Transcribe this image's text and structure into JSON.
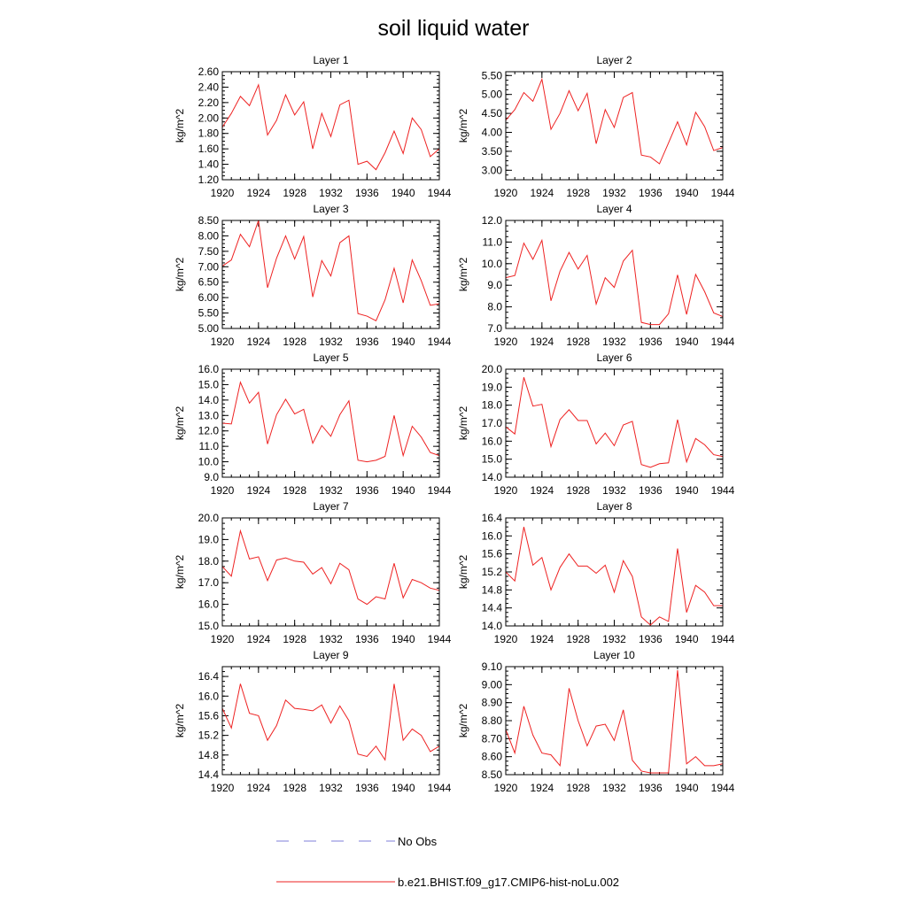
{
  "title": "soil liquid water",
  "legend": {
    "obs_label": "No Obs",
    "obs_color": "#7f7fd9",
    "model_label": "b.e21.BHIST.f09_g17.CMIP6-hist-noLu.002",
    "model_color": "#ee2222"
  },
  "chart_data": [
    {
      "type": "line",
      "title": "Layer 1",
      "ylabel": "kg/m^2",
      "xlim": [
        1920,
        1944
      ],
      "ylim": [
        1.2,
        2.6
      ],
      "xticks": [
        1920,
        1924,
        1928,
        1932,
        1936,
        1940,
        1944
      ],
      "xtick_labels": [
        "1920",
        "1924",
        "1928",
        "1932",
        "1936",
        "1940",
        "1944"
      ],
      "yticks": [
        1.2,
        1.4,
        1.6,
        1.8,
        2.0,
        2.2,
        2.4,
        2.6
      ],
      "ytick_labels": [
        "1.20",
        "1.40",
        "1.60",
        "1.80",
        "2.00",
        "2.20",
        "2.40",
        "2.60"
      ],
      "x": [
        1920,
        1921,
        1922,
        1923,
        1924,
        1925,
        1926,
        1927,
        1928,
        1929,
        1930,
        1931,
        1932,
        1933,
        1934,
        1935,
        1936,
        1937,
        1938,
        1939,
        1940,
        1941,
        1942,
        1943,
        1944
      ],
      "series": [
        {
          "name": "b.e21.BHIST.f09_g17.CMIP6-hist-noLu.002",
          "values": [
            1.88,
            2.06,
            2.28,
            2.16,
            2.43,
            1.78,
            1.97,
            2.3,
            2.04,
            2.21,
            1.6,
            2.06,
            1.76,
            2.17,
            2.23,
            1.4,
            1.44,
            1.33,
            1.55,
            1.83,
            1.54,
            2.0,
            1.85,
            1.5,
            1.6
          ]
        }
      ]
    },
    {
      "type": "line",
      "title": "Layer 2",
      "ylabel": "kg/m^2",
      "xlim": [
        1920,
        1944
      ],
      "ylim": [
        2.75,
        5.6
      ],
      "xticks": [
        1920,
        1924,
        1928,
        1932,
        1936,
        1940,
        1944
      ],
      "xtick_labels": [
        "1920",
        "1924",
        "1928",
        "1932",
        "1936",
        "1940",
        "1944"
      ],
      "yticks": [
        3.0,
        3.5,
        4.0,
        4.5,
        5.0,
        5.5
      ],
      "ytick_labels": [
        "3.00",
        "3.50",
        "4.00",
        "4.50",
        "5.00",
        "5.50"
      ],
      "x": [
        1920,
        1921,
        1922,
        1923,
        1924,
        1925,
        1926,
        1927,
        1928,
        1929,
        1930,
        1931,
        1932,
        1933,
        1934,
        1935,
        1936,
        1937,
        1938,
        1939,
        1940,
        1941,
        1942,
        1943,
        1944
      ],
      "series": [
        {
          "name": "b.e21.BHIST.f09_g17.CMIP6-hist-noLu.002",
          "values": [
            4.32,
            4.6,
            5.05,
            4.82,
            5.4,
            4.08,
            4.5,
            5.1,
            4.57,
            5.03,
            3.7,
            4.6,
            4.13,
            4.92,
            5.05,
            3.4,
            3.35,
            3.17,
            3.72,
            4.28,
            3.67,
            4.53,
            4.15,
            3.52,
            3.6
          ]
        }
      ]
    },
    {
      "type": "line",
      "title": "Layer 3",
      "ylabel": "kg/m^2",
      "xlim": [
        1920,
        1944
      ],
      "ylim": [
        5.0,
        8.5
      ],
      "xticks": [
        1920,
        1924,
        1928,
        1932,
        1936,
        1940,
        1944
      ],
      "xtick_labels": [
        "1920",
        "1924",
        "1928",
        "1932",
        "1936",
        "1940",
        "1944"
      ],
      "yticks": [
        5.0,
        5.5,
        6.0,
        6.5,
        7.0,
        7.5,
        8.0,
        8.5
      ],
      "ytick_labels": [
        "5.00",
        "5.50",
        "6.00",
        "6.50",
        "7.00",
        "7.50",
        "8.00",
        "8.50"
      ],
      "x": [
        1920,
        1921,
        1922,
        1923,
        1924,
        1925,
        1926,
        1927,
        1928,
        1929,
        1930,
        1931,
        1932,
        1933,
        1934,
        1935,
        1936,
        1937,
        1938,
        1939,
        1940,
        1941,
        1942,
        1943,
        1944
      ],
      "series": [
        {
          "name": "b.e21.BHIST.f09_g17.CMIP6-hist-noLu.002",
          "values": [
            7.02,
            7.22,
            8.05,
            7.65,
            8.5,
            6.32,
            7.28,
            8.0,
            7.25,
            7.98,
            6.02,
            7.2,
            6.7,
            7.78,
            8.0,
            5.48,
            5.4,
            5.25,
            5.93,
            6.95,
            5.83,
            7.22,
            6.55,
            5.75,
            5.8
          ]
        }
      ]
    },
    {
      "type": "line",
      "title": "Layer 4",
      "ylabel": "kg/m^2",
      "xlim": [
        1920,
        1944
      ],
      "ylim": [
        7.0,
        12.0
      ],
      "xticks": [
        1920,
        1924,
        1928,
        1932,
        1936,
        1940,
        1944
      ],
      "xtick_labels": [
        "1920",
        "1924",
        "1928",
        "1932",
        "1936",
        "1940",
        "1944"
      ],
      "yticks": [
        7.0,
        8.0,
        9.0,
        10.0,
        11.0,
        12.0
      ],
      "ytick_labels": [
        "7.0",
        "8.0",
        "9.0",
        "10.0",
        "11.0",
        "12.0"
      ],
      "x": [
        1920,
        1921,
        1922,
        1923,
        1924,
        1925,
        1926,
        1927,
        1928,
        1929,
        1930,
        1931,
        1932,
        1933,
        1934,
        1935,
        1936,
        1937,
        1938,
        1939,
        1940,
        1941,
        1942,
        1943,
        1944
      ],
      "series": [
        {
          "name": "b.e21.BHIST.f09_g17.CMIP6-hist-noLu.002",
          "values": [
            9.35,
            9.45,
            10.95,
            10.2,
            11.08,
            8.28,
            9.65,
            10.52,
            9.75,
            10.38,
            8.13,
            9.35,
            8.9,
            10.12,
            10.62,
            7.28,
            7.18,
            7.18,
            7.68,
            9.48,
            7.65,
            9.5,
            8.7,
            7.72,
            7.55
          ]
        }
      ]
    },
    {
      "type": "line",
      "title": "Layer 5",
      "ylabel": "kg/m^2",
      "xlim": [
        1920,
        1944
      ],
      "ylim": [
        9.0,
        16.0
      ],
      "xticks": [
        1920,
        1924,
        1928,
        1932,
        1936,
        1940,
        1944
      ],
      "xtick_labels": [
        "1920",
        "1924",
        "1928",
        "1932",
        "1936",
        "1940",
        "1944"
      ],
      "yticks": [
        9.0,
        10.0,
        11.0,
        12.0,
        13.0,
        14.0,
        15.0,
        16.0
      ],
      "ytick_labels": [
        "9.0",
        "10.0",
        "11.0",
        "12.0",
        "13.0",
        "14.0",
        "15.0",
        "16.0"
      ],
      "x": [
        1920,
        1921,
        1922,
        1923,
        1924,
        1925,
        1926,
        1927,
        1928,
        1929,
        1930,
        1931,
        1932,
        1933,
        1934,
        1935,
        1936,
        1937,
        1938,
        1939,
        1940,
        1941,
        1942,
        1943,
        1944
      ],
      "series": [
        {
          "name": "b.e21.BHIST.f09_g17.CMIP6-hist-noLu.002",
          "values": [
            12.5,
            12.45,
            15.15,
            13.8,
            14.5,
            11.15,
            13.05,
            14.05,
            13.1,
            13.4,
            11.2,
            12.35,
            11.65,
            13.05,
            13.95,
            10.1,
            10.0,
            10.1,
            10.35,
            13.0,
            10.4,
            12.3,
            11.6,
            10.6,
            10.4
          ]
        }
      ]
    },
    {
      "type": "line",
      "title": "Layer 6",
      "ylabel": "kg/m^2",
      "xlim": [
        1920,
        1944
      ],
      "ylim": [
        14.0,
        20.0
      ],
      "xticks": [
        1920,
        1924,
        1928,
        1932,
        1936,
        1940,
        1944
      ],
      "xtick_labels": [
        "1920",
        "1924",
        "1928",
        "1932",
        "1936",
        "1940",
        "1944"
      ],
      "yticks": [
        14.0,
        15.0,
        16.0,
        17.0,
        18.0,
        19.0,
        20.0
      ],
      "ytick_labels": [
        "14.0",
        "15.0",
        "16.0",
        "17.0",
        "18.0",
        "19.0",
        "20.0"
      ],
      "x": [
        1920,
        1921,
        1922,
        1923,
        1924,
        1925,
        1926,
        1927,
        1928,
        1929,
        1930,
        1931,
        1932,
        1933,
        1934,
        1935,
        1936,
        1937,
        1938,
        1939,
        1940,
        1941,
        1942,
        1943,
        1944
      ],
      "series": [
        {
          "name": "b.e21.BHIST.f09_g17.CMIP6-hist-noLu.002",
          "values": [
            16.8,
            16.4,
            19.55,
            17.95,
            18.05,
            15.7,
            17.2,
            17.75,
            17.15,
            17.15,
            15.85,
            16.45,
            15.75,
            16.9,
            17.1,
            14.7,
            14.55,
            14.75,
            14.8,
            17.2,
            14.85,
            16.15,
            15.8,
            15.25,
            15.15
          ]
        }
      ]
    },
    {
      "type": "line",
      "title": "Layer 7",
      "ylabel": "kg/m^2",
      "xlim": [
        1920,
        1944
      ],
      "ylim": [
        15.0,
        20.0
      ],
      "xticks": [
        1920,
        1924,
        1928,
        1932,
        1936,
        1940,
        1944
      ],
      "xtick_labels": [
        "1920",
        "1924",
        "1928",
        "1932",
        "1936",
        "1940",
        "1944"
      ],
      "yticks": [
        15.0,
        16.0,
        17.0,
        18.0,
        19.0,
        20.0
      ],
      "ytick_labels": [
        "15.0",
        "16.0",
        "17.0",
        "18.0",
        "19.0",
        "20.0"
      ],
      "x": [
        1920,
        1921,
        1922,
        1923,
        1924,
        1925,
        1926,
        1927,
        1928,
        1929,
        1930,
        1931,
        1932,
        1933,
        1934,
        1935,
        1936,
        1937,
        1938,
        1939,
        1940,
        1941,
        1942,
        1943,
        1944
      ],
      "series": [
        {
          "name": "b.e21.BHIST.f09_g17.CMIP6-hist-noLu.002",
          "values": [
            17.75,
            17.3,
            19.4,
            18.1,
            18.2,
            17.1,
            18.05,
            18.15,
            18.0,
            17.95,
            17.4,
            17.7,
            16.95,
            17.9,
            17.6,
            16.25,
            16.0,
            16.35,
            16.25,
            17.9,
            16.3,
            17.15,
            17.0,
            16.75,
            16.65
          ]
        }
      ]
    },
    {
      "type": "line",
      "title": "Layer 8",
      "ylabel": "kg/m^2",
      "xlim": [
        1920,
        1944
      ],
      "ylim": [
        14.0,
        16.4
      ],
      "xticks": [
        1920,
        1924,
        1928,
        1932,
        1936,
        1940,
        1944
      ],
      "xtick_labels": [
        "1920",
        "1924",
        "1928",
        "1932",
        "1936",
        "1940",
        "1944"
      ],
      "yticks": [
        14.0,
        14.4,
        14.8,
        15.2,
        15.6,
        16.0,
        16.4
      ],
      "ytick_labels": [
        "14.0",
        "14.4",
        "14.8",
        "15.2",
        "15.6",
        "16.0",
        "16.4"
      ],
      "x": [
        1920,
        1921,
        1922,
        1923,
        1924,
        1925,
        1926,
        1927,
        1928,
        1929,
        1930,
        1931,
        1932,
        1933,
        1934,
        1935,
        1936,
        1937,
        1938,
        1939,
        1940,
        1941,
        1942,
        1943,
        1944
      ],
      "series": [
        {
          "name": "b.e21.BHIST.f09_g17.CMIP6-hist-noLu.002",
          "values": [
            15.2,
            15.0,
            16.2,
            15.35,
            15.52,
            14.8,
            15.3,
            15.6,
            15.33,
            15.33,
            15.17,
            15.35,
            14.75,
            15.45,
            15.1,
            14.2,
            14.02,
            14.2,
            14.1,
            15.72,
            14.3,
            14.9,
            14.75,
            14.45,
            14.45
          ]
        }
      ]
    },
    {
      "type": "line",
      "title": "Layer 9",
      "ylabel": "kg/m^2",
      "xlim": [
        1920,
        1944
      ],
      "ylim": [
        14.4,
        16.6
      ],
      "xticks": [
        1920,
        1924,
        1928,
        1932,
        1936,
        1940,
        1944
      ],
      "xtick_labels": [
        "1920",
        "1924",
        "1928",
        "1932",
        "1936",
        "1940",
        "1944"
      ],
      "yticks": [
        14.4,
        14.8,
        15.2,
        15.6,
        16.0,
        16.4
      ],
      "ytick_labels": [
        "14.4",
        "14.8",
        "15.2",
        "15.6",
        "16.0",
        "16.4"
      ],
      "x": [
        1920,
        1921,
        1922,
        1923,
        1924,
        1925,
        1926,
        1927,
        1928,
        1929,
        1930,
        1931,
        1932,
        1933,
        1934,
        1935,
        1936,
        1937,
        1938,
        1939,
        1940,
        1941,
        1942,
        1943,
        1944
      ],
      "series": [
        {
          "name": "b.e21.BHIST.f09_g17.CMIP6-hist-noLu.002",
          "values": [
            15.75,
            15.35,
            16.25,
            15.65,
            15.6,
            15.1,
            15.4,
            15.92,
            15.75,
            15.73,
            15.7,
            15.82,
            15.45,
            15.8,
            15.5,
            14.82,
            14.77,
            14.98,
            14.7,
            16.25,
            15.1,
            15.33,
            15.2,
            14.87,
            14.98
          ]
        }
      ]
    },
    {
      "type": "line",
      "title": "Layer 10",
      "ylabel": "kg/m^2",
      "xlim": [
        1920,
        1944
      ],
      "ylim": [
        8.5,
        9.1
      ],
      "xticks": [
        1920,
        1924,
        1928,
        1932,
        1936,
        1940,
        1944
      ],
      "xtick_labels": [
        "1920",
        "1924",
        "1928",
        "1932",
        "1936",
        "1940",
        "1944"
      ],
      "yticks": [
        8.5,
        8.6,
        8.7,
        8.8,
        8.9,
        9.0,
        9.1
      ],
      "ytick_labels": [
        "8.50",
        "8.60",
        "8.70",
        "8.80",
        "8.90",
        "9.00",
        "9.10"
      ],
      "x": [
        1920,
        1921,
        1922,
        1923,
        1924,
        1925,
        1926,
        1927,
        1928,
        1929,
        1930,
        1931,
        1932,
        1933,
        1934,
        1935,
        1936,
        1937,
        1938,
        1939,
        1940,
        1941,
        1942,
        1943,
        1944
      ],
      "series": [
        {
          "name": "b.e21.BHIST.f09_g17.CMIP6-hist-noLu.002",
          "values": [
            8.75,
            8.62,
            8.88,
            8.72,
            8.62,
            8.61,
            8.55,
            8.98,
            8.8,
            8.66,
            8.77,
            8.78,
            8.69,
            8.86,
            8.58,
            8.52,
            8.51,
            8.51,
            8.51,
            9.08,
            8.56,
            8.6,
            8.55,
            8.55,
            8.56
          ]
        }
      ]
    }
  ]
}
